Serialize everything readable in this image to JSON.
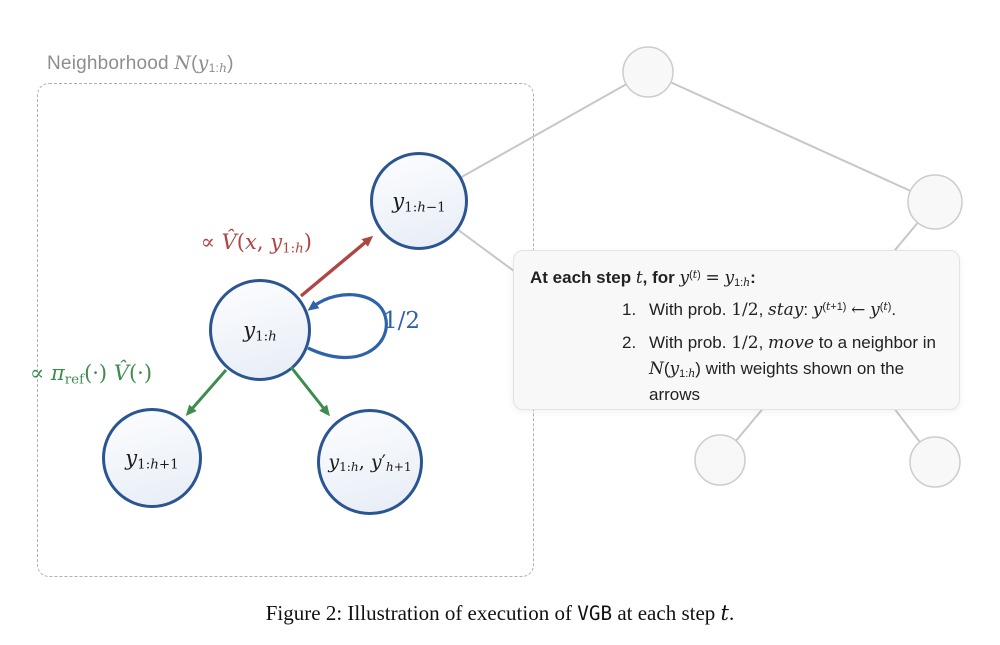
{
  "colors": {
    "node_border": "#2b5592",
    "node_fill_top": "#fcfdff",
    "node_fill_bottom": "#e7edf6",
    "red": "#ae4643",
    "green": "#3f8c4f",
    "blue": "#2f62ac",
    "gray_edge": "#c7c7c7",
    "gray_node_fill": "#f8f8f8",
    "gray_node_border": "#cccccc",
    "dashed_border": "#b0b0b0",
    "label_gray": "#8e8e8e",
    "box_bg": "#f8f8f8",
    "box_border": "#e3e3e3"
  },
  "neighborhood": {
    "label": "Neighborhood *N*(*y*_{1:*h*})"
  },
  "nodes": {
    "top": "*y*_{1:*h*−1}",
    "center": "*y*_{1:*h*}",
    "bottom_left": "*y*_{1:*h*+1}",
    "bottom_right": "*y*_{1:*h*}, *y*′_{*h*+1}"
  },
  "edge_labels": {
    "up_weight": "∝ *V̂*(*x*, *y*_{1:*h*})",
    "down_weight": "∝ *π*_{ref}(·) *V̂*(·)",
    "stay_prob": "1/2"
  },
  "info_box": {
    "title": "**At each step** *t***, for** *y*^{(*t*)} ~=~ *y*_{1:*h*}**:**",
    "items": [
      {
        "num": "1.",
        "text": "With prob. ~1/2~, *stay*:  *y*^{(*t*+1)} ~←~ *y*^{(*t*)}."
      },
      {
        "num": "2.",
        "text": "With prob. ~1/2~, *move* to a neighbor in *N*(*y*_{1:*h*}) with weights shown on the arrows"
      }
    ]
  },
  "caption": "Figure 2: Illustration of execution of `VGB` at each step *t*."
}
